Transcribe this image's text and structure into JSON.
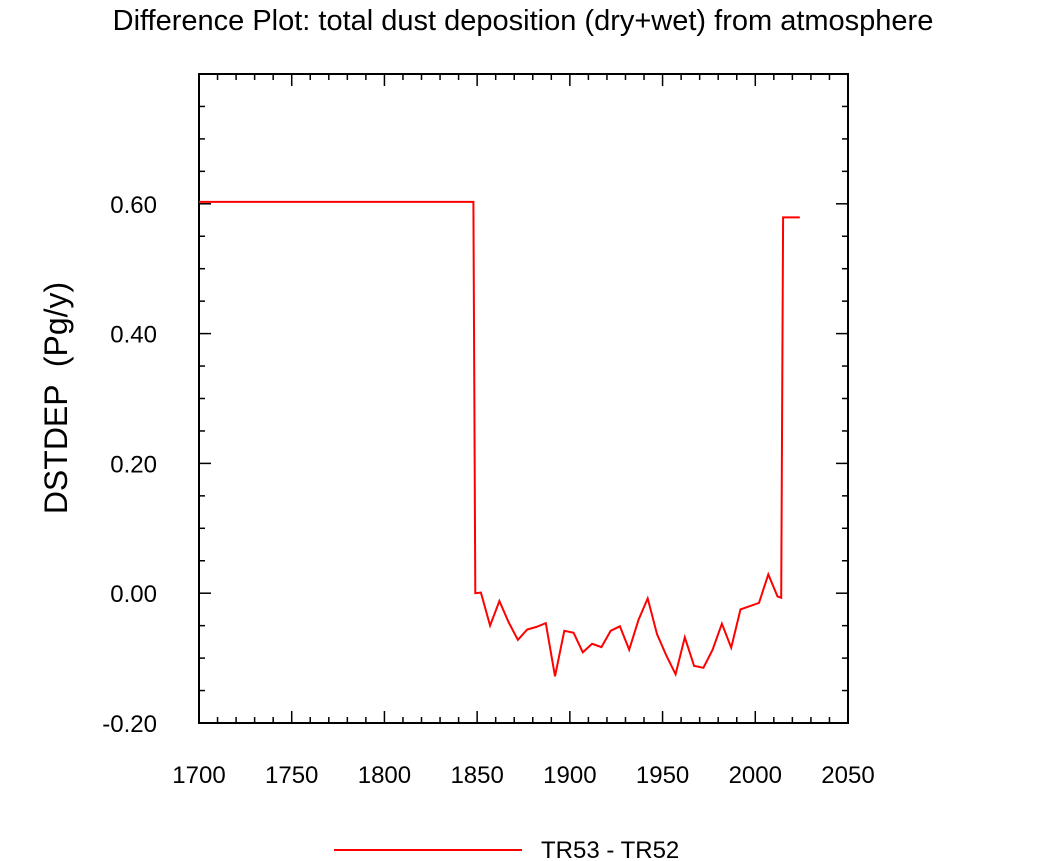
{
  "chart_data": {
    "type": "line",
    "title": "Difference Plot: total dust deposition (dry+wet) from atmosphere",
    "xlabel": "",
    "ylabel": "DSTDEP  (Pg/y)",
    "xlim": [
      1700,
      2050
    ],
    "ylim": [
      -0.2,
      0.8
    ],
    "x_ticks": [
      1700,
      1750,
      1800,
      1850,
      1900,
      1950,
      2000,
      2050
    ],
    "y_ticks": [
      -0.2,
      0.0,
      0.2,
      0.4,
      0.6
    ],
    "x_tick_labels": [
      "1700",
      "1750",
      "1800",
      "1850",
      "1900",
      "1950",
      "2000",
      "2050"
    ],
    "y_tick_labels": [
      "-0.20",
      "0.00",
      "0.20",
      "0.40",
      "0.60"
    ],
    "grid": false,
    "legend_position": "bottom-center",
    "series": [
      {
        "name": "TR53 - TR52",
        "color": "#ff0000",
        "x": [
          1700,
          1848,
          1849,
          1852,
          1857,
          1862,
          1867,
          1872,
          1877,
          1882,
          1887,
          1892,
          1897,
          1902,
          1907,
          1912,
          1917,
          1922,
          1927,
          1932,
          1937,
          1942,
          1947,
          1952,
          1957,
          1962,
          1967,
          1972,
          1977,
          1982,
          1987,
          1992,
          1997,
          2002,
          2007,
          2012,
          2014,
          2015,
          2024
        ],
        "values": [
          0.603,
          0.603,
          0.0,
          0.001,
          -0.05,
          -0.012,
          -0.045,
          -0.072,
          -0.056,
          -0.052,
          -0.046,
          -0.128,
          -0.058,
          -0.061,
          -0.091,
          -0.078,
          -0.083,
          -0.058,
          -0.051,
          -0.087,
          -0.041,
          -0.008,
          -0.063,
          -0.096,
          -0.125,
          -0.068,
          -0.112,
          -0.115,
          -0.087,
          -0.047,
          -0.084,
          -0.025,
          -0.02,
          -0.015,
          0.029,
          -0.005,
          -0.007,
          0.579,
          0.579
        ]
      }
    ]
  }
}
